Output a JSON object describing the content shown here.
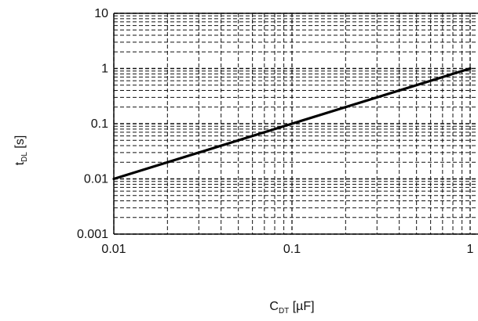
{
  "chart_data": {
    "type": "line",
    "title": "",
    "x_axis": {
      "scale": "log",
      "range": [
        0.01,
        1
      ],
      "ticks": [
        "0.01",
        "0.1",
        "1"
      ],
      "label_main": "C",
      "label_sub": "DT",
      "label_unit": " [µF]"
    },
    "y_axis": {
      "scale": "log",
      "range": [
        0.001,
        10
      ],
      "ticks": [
        "0.001",
        "0.01",
        "0.1",
        "1",
        "10"
      ],
      "label_main": "t",
      "label_sub": "DL",
      "label_unit": " [s]"
    },
    "grid": true,
    "grid_style": "dashed",
    "series": [
      {
        "x": [
          0.01,
          0.1,
          1
        ],
        "y": [
          0.01,
          0.1,
          1
        ]
      }
    ]
  }
}
